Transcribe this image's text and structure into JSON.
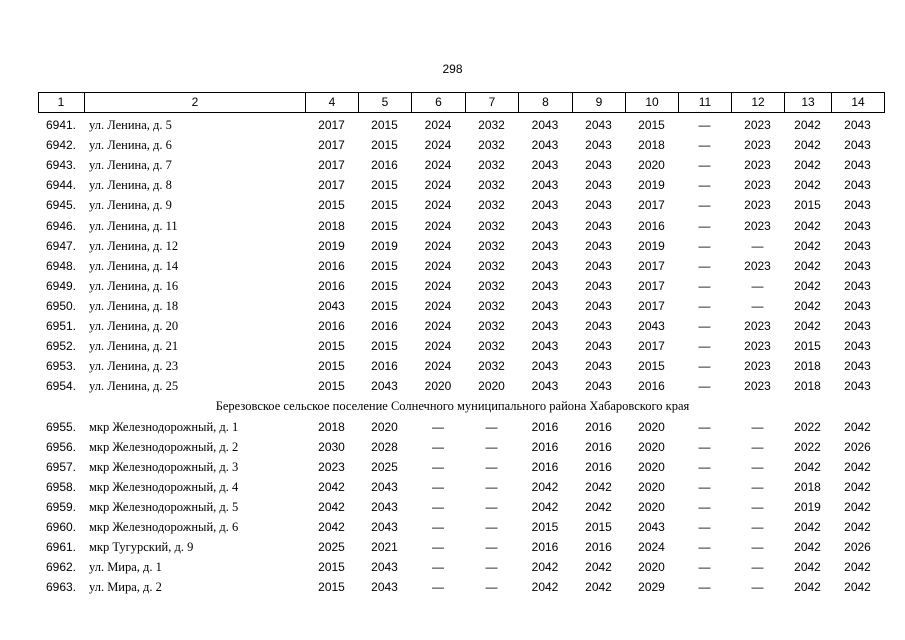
{
  "page_number": "298",
  "table": {
    "header": [
      "1",
      "2",
      "4",
      "5",
      "6",
      "7",
      "8",
      "9",
      "10",
      "11",
      "12",
      "13",
      "14"
    ],
    "rows": [
      {
        "cells": [
          "6941.",
          "ул. Ленина, д. 5",
          "2017",
          "2015",
          "2024",
          "2032",
          "2043",
          "2043",
          "2015",
          "—",
          "2023",
          "2042",
          "2043"
        ]
      },
      {
        "cells": [
          "6942.",
          "ул. Ленина, д. 6",
          "2017",
          "2015",
          "2024",
          "2032",
          "2043",
          "2043",
          "2018",
          "—",
          "2023",
          "2042",
          "2043"
        ]
      },
      {
        "cells": [
          "6943.",
          "ул. Ленина, д. 7",
          "2017",
          "2016",
          "2024",
          "2032",
          "2043",
          "2043",
          "2020",
          "—",
          "2023",
          "2042",
          "2043"
        ]
      },
      {
        "cells": [
          "6944.",
          "ул. Ленина, д. 8",
          "2017",
          "2015",
          "2024",
          "2032",
          "2043",
          "2043",
          "2019",
          "—",
          "2023",
          "2042",
          "2043"
        ]
      },
      {
        "cells": [
          "6945.",
          "ул. Ленина, д. 9",
          "2015",
          "2015",
          "2024",
          "2032",
          "2043",
          "2043",
          "2017",
          "—",
          "2023",
          "2015",
          "2043"
        ]
      },
      {
        "cells": [
          "6946.",
          "ул. Ленина, д. 11",
          "2018",
          "2015",
          "2024",
          "2032",
          "2043",
          "2043",
          "2016",
          "—",
          "2023",
          "2042",
          "2043"
        ]
      },
      {
        "cells": [
          "6947.",
          "ул. Ленина, д. 12",
          "2019",
          "2019",
          "2024",
          "2032",
          "2043",
          "2043",
          "2019",
          "—",
          "—",
          "2042",
          "2043"
        ]
      },
      {
        "cells": [
          "6948.",
          "ул. Ленина, д. 14",
          "2016",
          "2015",
          "2024",
          "2032",
          "2043",
          "2043",
          "2017",
          "—",
          "2023",
          "2042",
          "2043"
        ]
      },
      {
        "cells": [
          "6949.",
          "ул. Ленина, д. 16",
          "2016",
          "2015",
          "2024",
          "2032",
          "2043",
          "2043",
          "2017",
          "—",
          "—",
          "2042",
          "2043"
        ]
      },
      {
        "cells": [
          "6950.",
          "ул. Ленина, д. 18",
          "2043",
          "2015",
          "2024",
          "2032",
          "2043",
          "2043",
          "2017",
          "—",
          "—",
          "2042",
          "2043"
        ]
      },
      {
        "cells": [
          "6951.",
          "ул. Ленина, д. 20",
          "2016",
          "2016",
          "2024",
          "2032",
          "2043",
          "2043",
          "2043",
          "—",
          "2023",
          "2042",
          "2043"
        ]
      },
      {
        "cells": [
          "6952.",
          "ул. Ленина, д. 21",
          "2015",
          "2015",
          "2024",
          "2032",
          "2043",
          "2043",
          "2017",
          "—",
          "2023",
          "2015",
          "2043"
        ]
      },
      {
        "cells": [
          "6953.",
          "ул. Ленина, д. 23",
          "2015",
          "2016",
          "2024",
          "2032",
          "2043",
          "2043",
          "2015",
          "—",
          "2023",
          "2018",
          "2043"
        ]
      },
      {
        "cells": [
          "6954.",
          "ул. Ленина, д. 25",
          "2015",
          "2043",
          "2020",
          "2020",
          "2043",
          "2043",
          "2016",
          "—",
          "2023",
          "2018",
          "2043"
        ]
      },
      {
        "section": "Березовское сельское поселение Солнечного муниципального района Хабаровского края"
      },
      {
        "cells": [
          "6955.",
          "мкр Железнодорожный, д. 1",
          "2018",
          "2020",
          "—",
          "—",
          "2016",
          "2016",
          "2020",
          "—",
          "—",
          "2022",
          "2042"
        ]
      },
      {
        "cells": [
          "6956.",
          "мкр Железнодорожный, д. 2",
          "2030",
          "2028",
          "—",
          "—",
          "2016",
          "2016",
          "2020",
          "—",
          "—",
          "2022",
          "2026"
        ]
      },
      {
        "cells": [
          "6957.",
          "мкр Железнодорожный, д. 3",
          "2023",
          "2025",
          "—",
          "—",
          "2016",
          "2016",
          "2020",
          "—",
          "—",
          "2042",
          "2042"
        ]
      },
      {
        "cells": [
          "6958.",
          "мкр Железнодорожный, д. 4",
          "2042",
          "2043",
          "—",
          "—",
          "2042",
          "2042",
          "2020",
          "—",
          "—",
          "2018",
          "2042"
        ]
      },
      {
        "cells": [
          "6959.",
          "мкр Железнодорожный, д. 5",
          "2042",
          "2043",
          "—",
          "—",
          "2042",
          "2042",
          "2020",
          "—",
          "—",
          "2019",
          "2042"
        ]
      },
      {
        "cells": [
          "6960.",
          "мкр Железнодорожный, д. 6",
          "2042",
          "2043",
          "—",
          "—",
          "2015",
          "2015",
          "2043",
          "—",
          "—",
          "2042",
          "2042"
        ]
      },
      {
        "cells": [
          "6961.",
          "мкр Тугурский, д. 9",
          "2025",
          "2021",
          "—",
          "—",
          "2016",
          "2016",
          "2024",
          "—",
          "—",
          "2042",
          "2026"
        ]
      },
      {
        "cells": [
          "6962.",
          "ул. Мира, д. 1",
          "2015",
          "2043",
          "—",
          "—",
          "2042",
          "2042",
          "2020",
          "—",
          "—",
          "2042",
          "2042"
        ]
      },
      {
        "cells": [
          "6963.",
          "ул. Мира, д. 2",
          "2015",
          "2043",
          "—",
          "—",
          "2042",
          "2042",
          "2029",
          "—",
          "—",
          "2042",
          "2042"
        ]
      }
    ]
  }
}
